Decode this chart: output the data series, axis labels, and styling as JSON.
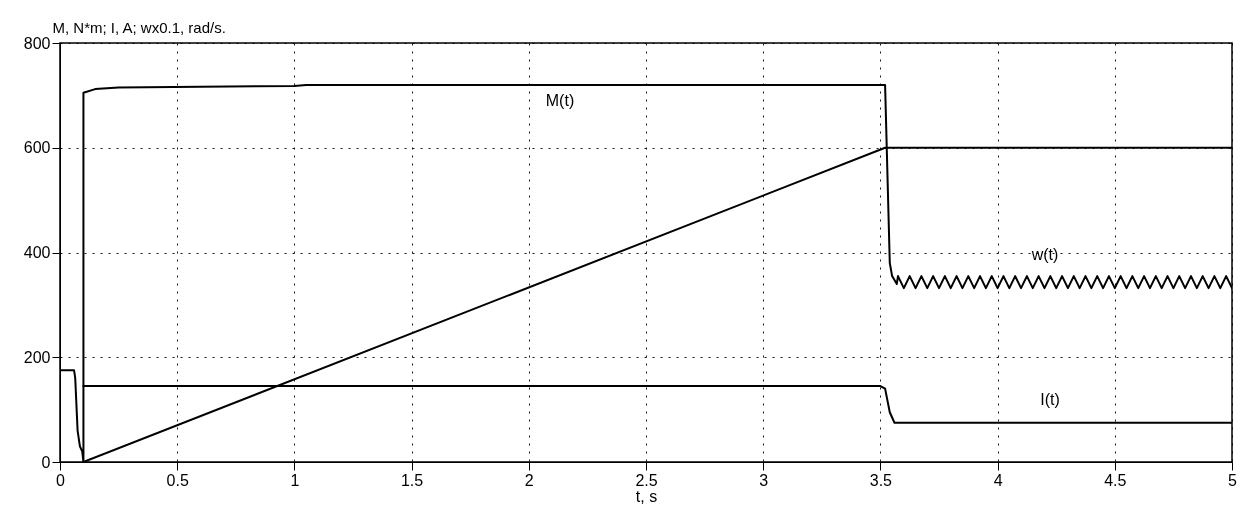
{
  "chart_data": {
    "type": "line",
    "xlabel": "t,  s",
    "ylabel": "M, N*m; I, A; wx0.1, rad/s.",
    "xlim": [
      0,
      5
    ],
    "ylim": [
      0,
      800
    ],
    "xticks": [
      0,
      0.5,
      1,
      1.5,
      2,
      2.5,
      3,
      3.5,
      4,
      4.5,
      5
    ],
    "yticks": [
      0,
      200,
      400,
      600,
      800
    ],
    "grid": true,
    "line_style": "solid",
    "marker": "none",
    "series": [
      {
        "color": "#000000",
        "x": [
          0,
          0.06,
          0.065,
          0.075,
          0.085,
          0.095,
          0.1,
          0.1,
          0.15,
          0.25,
          1.0,
          1.05,
          3.52,
          3.54,
          3.55,
          3.57,
          3.575,
          3.6,
          3.625,
          3.65,
          3.675,
          3.7,
          3.725,
          3.75,
          3.775,
          3.8,
          3.825,
          3.85,
          3.875,
          3.9,
          3.925,
          3.95,
          3.975,
          4.0,
          4.025,
          4.05,
          4.075,
          4.1,
          4.125,
          4.15,
          4.175,
          4.2,
          4.225,
          4.25,
          4.275,
          4.3,
          4.325,
          4.35,
          4.375,
          4.4,
          4.425,
          4.45,
          4.475,
          4.5,
          4.525,
          4.55,
          4.575,
          4.6,
          4.625,
          4.65,
          4.675,
          4.7,
          4.725,
          4.75,
          4.775,
          4.8,
          4.825,
          4.85,
          4.875,
          4.9,
          4.925,
          4.95,
          4.975,
          5.0
        ],
        "values": [
          175,
          175,
          160,
          60,
          30,
          20,
          0,
          705,
          712,
          715,
          718,
          720,
          720,
          380,
          355,
          340,
          355,
          332,
          355,
          332,
          355,
          332,
          355,
          332,
          355,
          332,
          355,
          332,
          355,
          332,
          355,
          332,
          355,
          332,
          355,
          332,
          355,
          332,
          355,
          332,
          355,
          332,
          355,
          332,
          355,
          332,
          355,
          332,
          355,
          332,
          355,
          332,
          355,
          332,
          355,
          332,
          355,
          332,
          355,
          332,
          355,
          332,
          355,
          332,
          355,
          332,
          355,
          332,
          355,
          332,
          355,
          332,
          355,
          332
        ]
      },
      {
        "color": "#000000",
        "x": [
          0.1,
          3.5,
          3.52,
          3.54,
          3.56,
          5
        ],
        "values": [
          145,
          145,
          140,
          95,
          75,
          75
        ]
      },
      {
        "color": "#000000",
        "x": [
          0.1,
          3.52,
          5
        ],
        "values": [
          0,
          600,
          600
        ]
      }
    ],
    "annotations": [
      "M(t)",
      "w(t)",
      "I(t)"
    ]
  }
}
